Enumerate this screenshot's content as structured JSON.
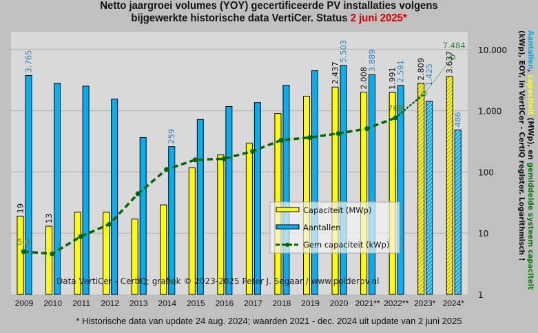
{
  "title": {
    "line1": "Netto jaargroei volumes (YOY) gecertificeerde  PV installaties  volgens",
    "line2_prefix": "bijgewerkte historische  data VertiCer. Status ",
    "line2_highlight": "2 juni  2025*"
  },
  "footnote": "* Historische data van update 24 aug. 2024; waarden 2021 - dec. 2024 uit update van 2 juni 2025",
  "right_axis_title": {
    "part1": "Aantallen",
    "sep1": ", ",
    "part2": "capaciteit",
    "part3": " (MWp), en ",
    "part4": "gemiddelde systeem capaciteit",
    "line2": "(kWp), EOY, in VertiCer - CertiQ register. Logarithmisch !"
  },
  "colors": {
    "capaciteit": "#ffff00",
    "aantallen": "#00b0f0",
    "gem": "#006400",
    "label_blue": "#2e86c1",
    "title_highlight": "#cc0000",
    "plot_bg": "#d9d9d9",
    "page_bg": "#c0c0c0"
  },
  "chart_data": {
    "type": "bar",
    "scale": "log",
    "ylim": [
      1,
      10000
    ],
    "yticks": [
      1,
      10,
      100,
      1000,
      10000
    ],
    "ytick_labels": [
      "1",
      "10",
      "100",
      "1.000",
      "10.000"
    ],
    "grid": true,
    "categories": [
      "2009",
      "2010",
      "2011",
      "2012",
      "2013",
      "2014",
      "2015",
      "2016",
      "2017",
      "2018",
      "2019",
      "2020",
      "2021**",
      "2022**",
      "2023*",
      "2024*"
    ],
    "series": [
      {
        "name": "Capaciteit (MWp)",
        "kind": "bar",
        "values": [
          19,
          13,
          22,
          22,
          17,
          29,
          117,
          190,
          295,
          900,
          1730,
          2437,
          2008,
          1991,
          2809,
          3637
        ],
        "hatched": [
          false,
          false,
          false,
          false,
          false,
          false,
          false,
          false,
          false,
          false,
          false,
          false,
          false,
          false,
          true,
          true
        ],
        "labels": [
          "19",
          "13",
          "",
          "",
          "",
          "",
          "",
          "",
          "",
          "",
          "",
          "2.437",
          "2.008",
          "1.991",
          "2.809",
          "3.637"
        ]
      },
      {
        "name": "Aantallen",
        "kind": "bar",
        "values": [
          3765,
          2800,
          2520,
          1550,
          365,
          259,
          720,
          1170,
          1360,
          2600,
          4500,
          5503,
          3889,
          2591,
          1425,
          486
        ],
        "hatched": [
          false,
          false,
          false,
          false,
          false,
          false,
          false,
          false,
          false,
          false,
          false,
          false,
          false,
          false,
          true,
          true
        ],
        "labels": [
          "3.765",
          "",
          "",
          "",
          "",
          "259",
          "",
          "",
          "",
          "",
          "",
          "5.503",
          "3.889",
          "2.591",
          "1.425",
          "486"
        ]
      },
      {
        "name": "Gem capaciteit (kWp)",
        "kind": "line",
        "values": [
          5.0,
          4.6,
          8.8,
          14,
          44,
          110,
          158,
          164,
          217,
          330,
          365,
          425,
          510,
          768,
          1900,
          7484
        ],
        "labels": [
          "5,0",
          "",
          "",
          "",
          "",
          "",
          "",
          "",
          "",
          "",
          "",
          "",
          "",
          "768",
          "",
          "7.484"
        ]
      }
    ],
    "legend": {
      "position": "center-right",
      "entries": [
        "Capaciteit (MWp)",
        "Aantallen",
        "Gem capaciteit (kWp)"
      ]
    },
    "annotation": "Data VertiCer - CertiQ; grafiek © 2023-2025 Peter J. Segaar / www.polderpv.nl"
  }
}
